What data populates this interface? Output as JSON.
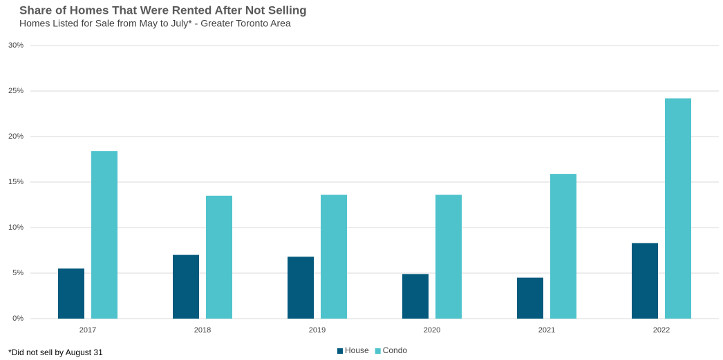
{
  "chart_data": {
    "type": "bar",
    "title": "Share of Homes That Were Rented After Not Selling",
    "subtitle": "Homes Listed for Sale from May to July* - Greater Toronto Area",
    "note": "*Did not sell by August 31",
    "categories": [
      "2017",
      "2018",
      "2019",
      "2020",
      "2021",
      "2022"
    ],
    "series": [
      {
        "name": "House",
        "color": "#045a7d",
        "values": [
          5.5,
          7.0,
          6.8,
          4.9,
          4.5,
          8.3
        ]
      },
      {
        "name": "Condo",
        "color": "#4fc3cc",
        "values": [
          18.4,
          13.5,
          13.6,
          13.6,
          15.9,
          24.2
        ]
      }
    ],
    "ylim": [
      0,
      30
    ],
    "yticks": [
      {
        "value": 0,
        "label": "0%"
      },
      {
        "value": 5,
        "label": "5%"
      },
      {
        "value": 10,
        "label": "10%"
      },
      {
        "value": 15,
        "label": "15%"
      },
      {
        "value": 20,
        "label": "20%"
      },
      {
        "value": 25,
        "label": "25%"
      },
      {
        "value": 30,
        "label": "30%"
      }
    ],
    "grid": true,
    "legend": "bottom"
  }
}
